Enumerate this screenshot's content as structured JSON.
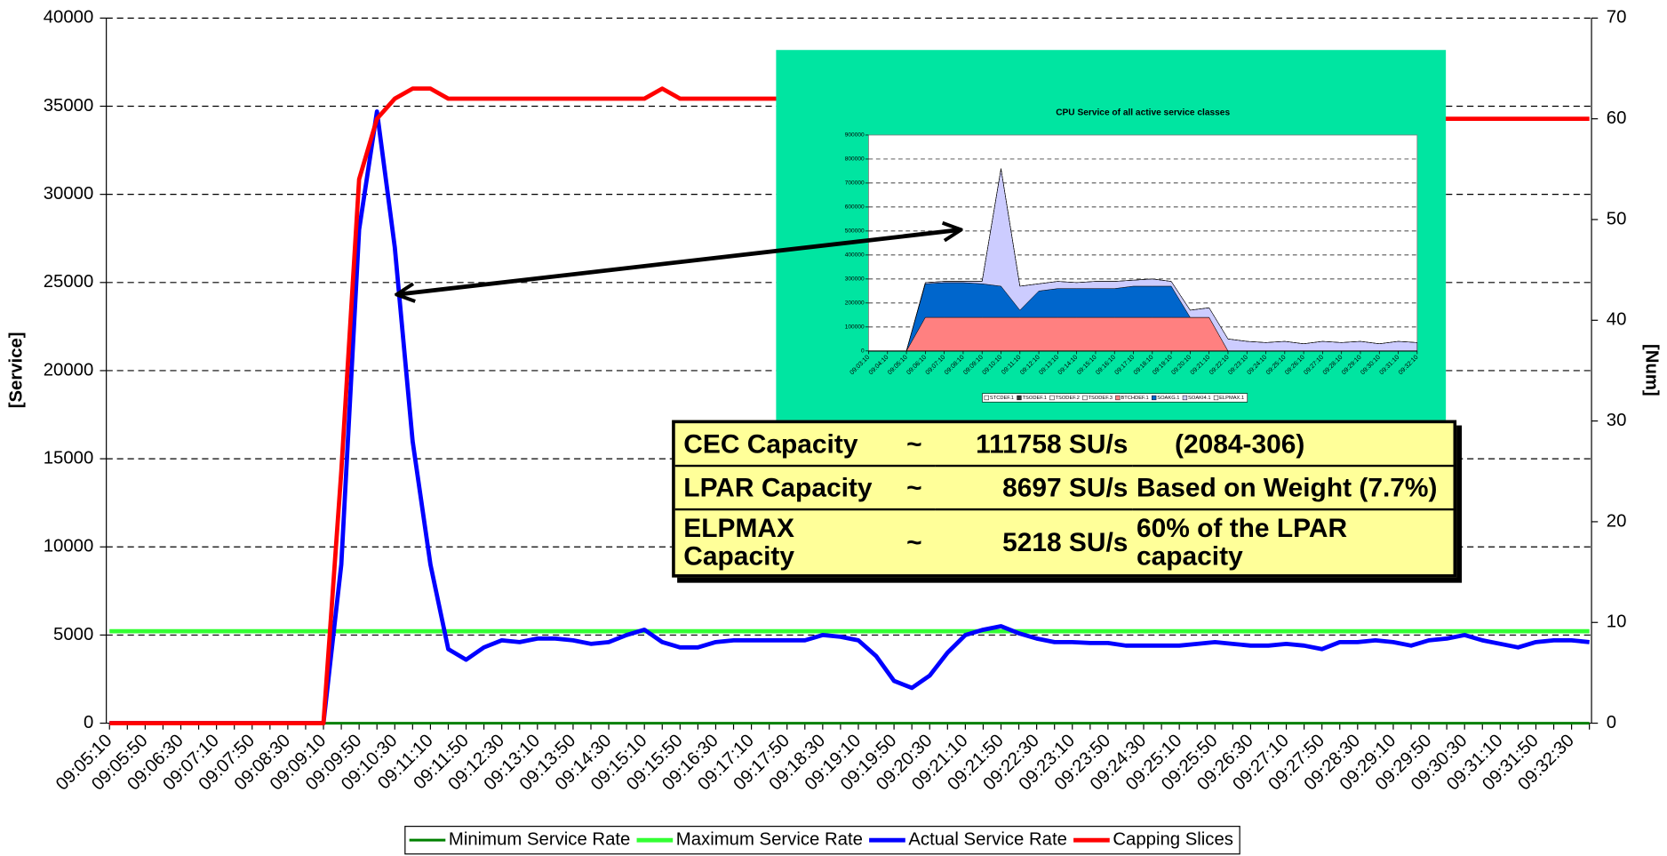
{
  "chart_data": [
    {
      "type": "line",
      "y_label": "[Service]",
      "y2_label": "[Num]",
      "categories": [
        "09:05:10",
        null,
        "09:05:50",
        null,
        "09:06:30",
        null,
        "09:07:10",
        null,
        "09:07:50",
        null,
        "09:08:30",
        null,
        "09:09:10",
        null,
        "09:09:50",
        null,
        "09:10:30",
        null,
        "09:11:10",
        null,
        "09:11:50",
        null,
        "09:12:30",
        null,
        "09:13:10",
        null,
        "09:13:50",
        null,
        "09:14:30",
        null,
        "09:15:10",
        null,
        "09:15:50",
        null,
        "09:16:30",
        null,
        "09:17:10",
        null,
        "09:17:50",
        null,
        "09:18:30",
        null,
        "09:19:10",
        null,
        "09:19:50",
        null,
        "09:20:30",
        null,
        "09:21:10",
        null,
        "09:21:50",
        null,
        "09:22:30",
        null,
        "09:23:10",
        null,
        "09:23:50",
        null,
        "09:24:30",
        null,
        "09:25:10",
        null,
        "09:25:50",
        null,
        "09:26:30",
        null,
        "09:27:10",
        null,
        "09:27:50",
        null,
        "09:28:30",
        null,
        "09:29:10",
        null,
        "09:29:50",
        null,
        "09:30:30",
        null,
        "09:31:10",
        null,
        "09:31:50",
        null,
        "09:32:30",
        null
      ],
      "series": [
        {
          "name": "Minimum Service Rate",
          "color": "#008000",
          "values": [
            0,
            0,
            0,
            0,
            0,
            0,
            0,
            0,
            0,
            0,
            0,
            0,
            0,
            0,
            0,
            0,
            0,
            0,
            0,
            0,
            0,
            0,
            0,
            0,
            0,
            0,
            0,
            0,
            0,
            0,
            0,
            0,
            0,
            0,
            0,
            0,
            0,
            0,
            0,
            0,
            0,
            0,
            0,
            0,
            0,
            0,
            0,
            0,
            0,
            0,
            0,
            0,
            0,
            0,
            0,
            0,
            0,
            0,
            0,
            0,
            0,
            0,
            0,
            0,
            0,
            0,
            0,
            0,
            0,
            0,
            0,
            0,
            0,
            0,
            0,
            0,
            0,
            0,
            0,
            0,
            0,
            0,
            0,
            0
          ]
        },
        {
          "name": "Maximum Service Rate",
          "color": "#33ff33",
          "values": [
            5218,
            5218,
            5218,
            5218,
            5218,
            5218,
            5218,
            5218,
            5218,
            5218,
            5218,
            5218,
            5218,
            5218,
            5218,
            5218,
            5218,
            5218,
            5218,
            5218,
            5218,
            5218,
            5218,
            5218,
            5218,
            5218,
            5218,
            5218,
            5218,
            5218,
            5218,
            5218,
            5218,
            5218,
            5218,
            5218,
            5218,
            5218,
            5218,
            5218,
            5218,
            5218,
            5218,
            5218,
            5218,
            5218,
            5218,
            5218,
            5218,
            5218,
            5218,
            5218,
            5218,
            5218,
            5218,
            5218,
            5218,
            5218,
            5218,
            5218,
            5218,
            5218,
            5218,
            5218,
            5218,
            5218,
            5218,
            5218,
            5218,
            5218,
            5218,
            5218,
            5218,
            5218,
            5218,
            5218,
            5218,
            5218,
            5218,
            5218,
            5218,
            5218,
            5218,
            5218
          ]
        },
        {
          "name": "Actual Service Rate",
          "color": "#0000ff",
          "values": [
            0,
            0,
            0,
            0,
            0,
            0,
            0,
            0,
            0,
            0,
            0,
            0,
            0,
            9000,
            28000,
            34700,
            27000,
            16000,
            9000,
            4200,
            3600,
            4300,
            4700,
            4600,
            4800,
            4800,
            4700,
            4500,
            4600,
            5000,
            5300,
            4600,
            4300,
            4300,
            4600,
            4700,
            4700,
            4700,
            4700,
            4700,
            5000,
            4900,
            4700,
            3800,
            2400,
            2000,
            2700,
            4000,
            5000,
            5300,
            5500,
            5100,
            4800,
            4600,
            4600,
            4550,
            4550,
            4400,
            4400,
            4400,
            4400,
            4500,
            4600,
            4500,
            4400,
            4400,
            4500,
            4400,
            4200,
            4600,
            4600,
            4700,
            4600,
            4400,
            4700,
            4800,
            5000,
            4700,
            4500,
            4300,
            4600,
            4700,
            4700,
            4600
          ]
        },
        {
          "name": "Capping Slices",
          "color": "#ff0000",
          "axis": "y2",
          "values": [
            0,
            0,
            0,
            0,
            0,
            0,
            0,
            0,
            0,
            0,
            0,
            0,
            0,
            25,
            54,
            60,
            62,
            63,
            63,
            62,
            62,
            62,
            62,
            62,
            62,
            62,
            62,
            62,
            62,
            62,
            62,
            63,
            62,
            62,
            62,
            62,
            62,
            62,
            62,
            62,
            62,
            62,
            62,
            62,
            62,
            60,
            60,
            60,
            60,
            60,
            60,
            60,
            60,
            60,
            60,
            60,
            60,
            60,
            60,
            60,
            60,
            60,
            60,
            60,
            60,
            60,
            60,
            60,
            60,
            60,
            60,
            60,
            60,
            60,
            60,
            60,
            60,
            60,
            60,
            60,
            60,
            60,
            60,
            60
          ]
        }
      ],
      "ylim": [
        0,
        40000
      ],
      "yticks": [
        0,
        5000,
        10000,
        15000,
        20000,
        25000,
        30000,
        35000,
        40000
      ],
      "y2lim": [
        0,
        70
      ],
      "y2ticks": [
        0,
        10,
        20,
        30,
        40,
        50,
        60,
        70
      ],
      "grid": true,
      "legend": "bottom",
      "annotation_table": {
        "rows": [
          [
            "CEC Capacity",
            "~",
            "111758 SU/s",
            "(2084-306)"
          ],
          [
            "LPAR Capacity",
            "~",
            "8697 SU/s",
            "Based on Weight (7.7%)"
          ],
          [
            "ELPMAX Capacity",
            "~",
            "5218 SU/s",
            "60% of the LPAR capacity"
          ]
        ]
      }
    },
    {
      "type": "area",
      "stacked": true,
      "title": "CPU Service of all active service classes",
      "categories": [
        "09:03:10",
        "09:04:10",
        "09:05:10",
        "09:06:10",
        "09:07:10",
        "09:08:10",
        "09:09:10",
        "09:10:10",
        "09:11:10",
        "09:12:10",
        "09:13:10",
        "09:14:10",
        "09:15:10",
        "09:16:10",
        "09:17:10",
        "09:18:10",
        "09:19:10",
        "09:20:10",
        "09:21:10",
        "09:22:10",
        "09:23:10",
        "09:24:10",
        "09:25:10",
        "09:26:10",
        "09:27:10",
        "09:28:10",
        "09:29:10",
        "09:30:10",
        "09:31:10",
        "09:32:10"
      ],
      "series": [
        {
          "name": "STCDEF.1",
          "color": "#ffffff",
          "values": [
            0,
            0,
            0,
            0,
            0,
            0,
            0,
            0,
            0,
            0,
            0,
            0,
            0,
            0,
            0,
            0,
            0,
            0,
            0,
            0,
            0,
            0,
            0,
            0,
            0,
            0,
            0,
            0,
            0,
            0
          ]
        },
        {
          "name": "TSODEF.1",
          "color": "#333333",
          "values": [
            0,
            0,
            0,
            0,
            0,
            0,
            0,
            0,
            0,
            0,
            0,
            0,
            0,
            0,
            0,
            0,
            0,
            0,
            0,
            0,
            0,
            0,
            0,
            0,
            0,
            0,
            0,
            0,
            0,
            0
          ]
        },
        {
          "name": "TSODEF.2",
          "color": "#ffffff",
          "values": [
            0,
            0,
            0,
            0,
            0,
            0,
            0,
            0,
            0,
            0,
            0,
            0,
            0,
            0,
            0,
            0,
            0,
            0,
            0,
            0,
            0,
            0,
            0,
            0,
            0,
            0,
            0,
            0,
            0,
            0
          ]
        },
        {
          "name": "TSODEF.3",
          "color": "#ffffff",
          "values": [
            0,
            0,
            0,
            0,
            0,
            0,
            0,
            0,
            0,
            0,
            0,
            0,
            0,
            0,
            0,
            0,
            0,
            0,
            0,
            0,
            0,
            0,
            0,
            0,
            0,
            0,
            0,
            0,
            0,
            0
          ]
        },
        {
          "name": "BTCHDEF.1",
          "color": "#ff8080",
          "values": [
            0,
            0,
            0,
            140000,
            140000,
            140000,
            140000,
            140000,
            140000,
            140000,
            140000,
            140000,
            140000,
            140000,
            140000,
            140000,
            140000,
            140000,
            140000,
            0,
            0,
            0,
            0,
            0,
            0,
            0,
            0,
            0,
            0,
            0
          ]
        },
        {
          "name": "SOAKG.1",
          "color": "#0066cc",
          "values": [
            0,
            0,
            0,
            140000,
            145000,
            145000,
            140000,
            130000,
            30000,
            110000,
            120000,
            120000,
            120000,
            120000,
            130000,
            130000,
            130000,
            0,
            0,
            0,
            0,
            0,
            0,
            0,
            0,
            0,
            0,
            0,
            0,
            0
          ]
        },
        {
          "name": "SOAKI4.1",
          "color": "#ccccff",
          "values": [
            0,
            0,
            0,
            5000,
            5000,
            5000,
            10000,
            490000,
            100000,
            30000,
            30000,
            25000,
            30000,
            30000,
            25000,
            30000,
            20000,
            30000,
            40000,
            50000,
            40000,
            35000,
            40000,
            30000,
            40000,
            35000,
            40000,
            30000,
            40000,
            35000
          ]
        },
        {
          "name": "ELPMAX.1",
          "color": "#ffffff",
          "values": [
            0,
            0,
            0,
            0,
            0,
            0,
            0,
            0,
            0,
            0,
            0,
            0,
            0,
            0,
            0,
            0,
            0,
            0,
            0,
            0,
            0,
            0,
            0,
            0,
            0,
            0,
            0,
            0,
            0,
            0
          ]
        }
      ],
      "ylim": [
        0,
        900000
      ],
      "yticks": [
        0,
        100000,
        200000,
        300000,
        400000,
        500000,
        600000,
        700000,
        800000,
        900000
      ],
      "grid": true,
      "legend": "bottom"
    }
  ]
}
